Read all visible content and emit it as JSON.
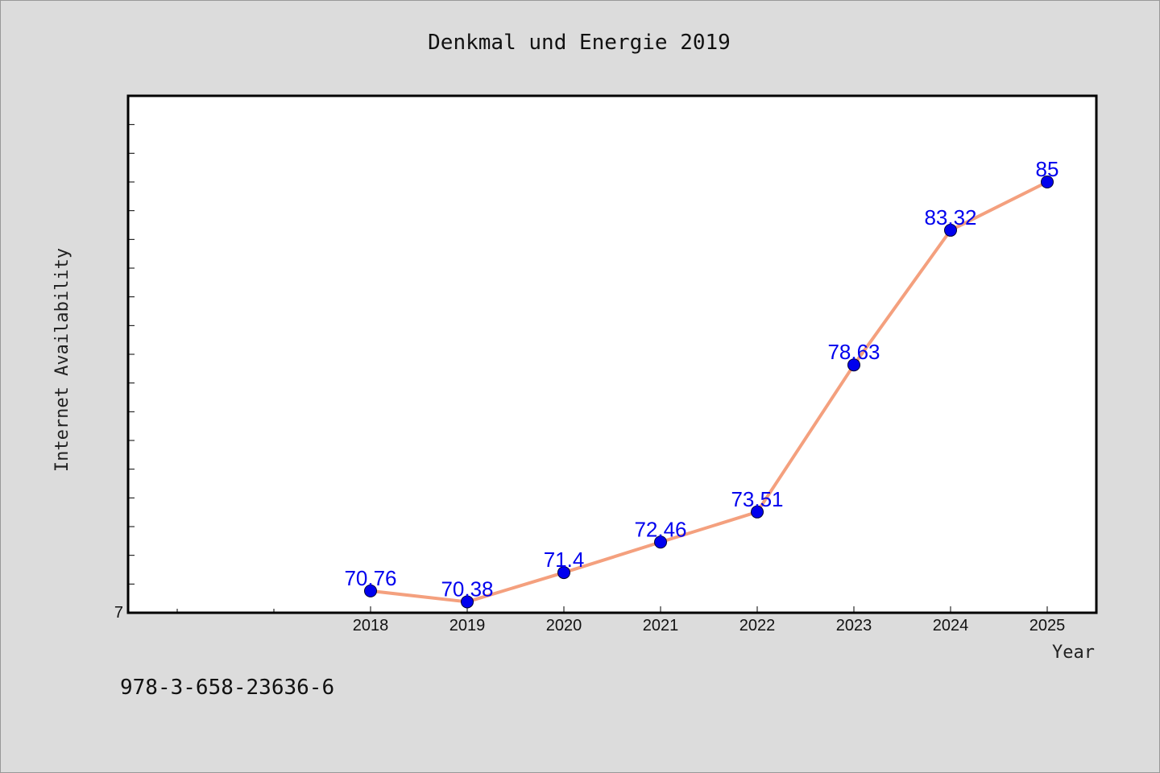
{
  "chart_data": {
    "type": "line",
    "title": "Denkmal und Energie 2019",
    "xlabel": "Year",
    "ylabel": "Internet Availability",
    "x": [
      "2018",
      "2019",
      "2020",
      "2021",
      "2022",
      "2023",
      "2024",
      "2025"
    ],
    "series": [
      {
        "values": [
          70.76,
          70.38,
          71.4,
          72.46,
          73.51,
          78.63,
          83.32,
          85
        ],
        "labels": [
          "70.76",
          "70.38",
          "71.4",
          "72.46",
          "73.51",
          "78.63",
          "83.32",
          "85"
        ]
      }
    ],
    "ylim": [
      70,
      88
    ],
    "y_tick_labels": [
      "7"
    ],
    "grid": false,
    "legend": "none",
    "colors": {
      "line": "#f4a07e",
      "marker": "#0000ee",
      "data_label": "#0000ee",
      "plot_background": "#ffffff",
      "page_background": "#dcdcdc"
    }
  },
  "footer": {
    "isbn": "978-3-658-23636-6"
  }
}
